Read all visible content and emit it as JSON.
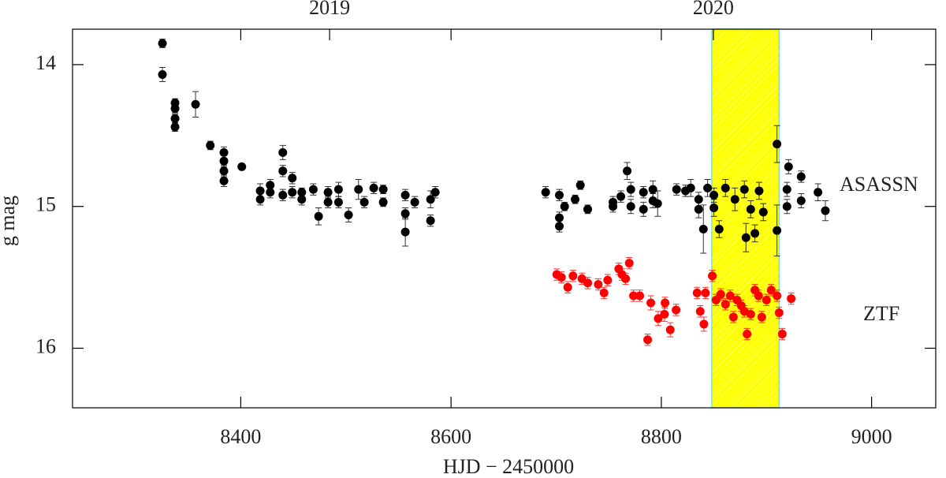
{
  "chart_data": {
    "type": "scatter",
    "x_label": "HJD − 2450000",
    "y_label": "g mag",
    "xlim": [
      8240,
      9061
    ],
    "ylim": [
      13.75,
      16.42
    ],
    "y_inverted": true,
    "xticks": [
      8400,
      8600,
      8800,
      9000
    ],
    "yticks": [
      14,
      15,
      16
    ],
    "top_ticks": [
      {
        "value": 8484.5,
        "label": "2019"
      },
      {
        "value": 8849.5,
        "label": "2020"
      }
    ],
    "shaded_region": [
      8848,
      8912
    ],
    "shaded_color": "#ffff00",
    "series": [
      {
        "name": "ASASSN",
        "color": "#000000",
        "x": [
          8325.5,
          8325.5,
          8337.5,
          8337.5,
          8337.5,
          8337.5,
          8357,
          8371,
          8384,
          8384,
          8384,
          8384,
          8401,
          8418.5,
          8418.5,
          8428,
          8428,
          8440,
          8440,
          8440,
          8449,
          8449,
          8458,
          8458,
          8469,
          8474,
          8483,
          8483,
          8493,
          8493,
          8502.5,
          8512,
          8517.5,
          8526.5,
          8535.5,
          8535.5,
          8556.5,
          8556.5,
          8556.5,
          8565.5,
          8580.5,
          8580.5,
          8585,
          8690,
          8703,
          8703,
          8703,
          8708,
          8718,
          8723,
          8730,
          8754,
          8754,
          8761.5,
          8767.5,
          8771,
          8771,
          8783,
          8783,
          8792,
          8792,
          8796.5,
          8814.5,
          8823,
          8828,
          8835.5,
          8835.5,
          8840,
          8844,
          8850,
          8850,
          8855,
          8861,
          8870,
          8879,
          8880.5,
          8885,
          8889,
          8893,
          8897,
          8910,
          8910,
          8919.5,
          8919.5,
          8921,
          8933,
          8933,
          8949,
          8956
        ],
        "values": [
          13.85,
          14.07,
          14.27,
          14.31,
          14.38,
          14.44,
          14.28,
          14.57,
          14.62,
          14.68,
          14.75,
          14.82,
          14.72,
          14.89,
          14.95,
          14.85,
          14.9,
          14.62,
          14.75,
          14.92,
          14.8,
          14.9,
          14.9,
          14.95,
          14.88,
          15.07,
          14.9,
          14.97,
          14.88,
          14.97,
          15.06,
          14.88,
          14.97,
          14.87,
          14.88,
          14.97,
          14.92,
          15.05,
          15.18,
          14.97,
          14.95,
          15.1,
          14.9,
          14.9,
          14.92,
          15.08,
          15.14,
          15.0,
          14.95,
          14.85,
          15.02,
          14.97,
          15.0,
          14.93,
          14.75,
          14.88,
          15.0,
          14.9,
          15.02,
          14.88,
          14.96,
          14.98,
          14.88,
          14.89,
          14.87,
          14.95,
          15.02,
          15.16,
          14.87,
          14.92,
          15.01,
          15.16,
          14.87,
          14.95,
          14.88,
          15.22,
          15.02,
          15.19,
          14.89,
          15.04,
          14.56,
          15.17,
          14.88,
          15.0,
          14.72,
          14.79,
          14.96,
          14.9,
          15.03
        ],
        "errors": [
          0.03,
          0.05,
          0.03,
          0.03,
          0.03,
          0.03,
          0.09,
          0.03,
          0.04,
          0.04,
          0.04,
          0.04,
          0.02,
          0.05,
          0.04,
          0.04,
          0.04,
          0.05,
          0.04,
          0.04,
          0.04,
          0.04,
          0.03,
          0.04,
          0.04,
          0.06,
          0.04,
          0.04,
          0.05,
          0.04,
          0.05,
          0.07,
          0.04,
          0.04,
          0.03,
          0.03,
          0.04,
          0.04,
          0.1,
          0.04,
          0.06,
          0.04,
          0.04,
          0.04,
          0.04,
          0.04,
          0.04,
          0.03,
          0.03,
          0.03,
          0.03,
          0.04,
          0.04,
          0.04,
          0.06,
          0.05,
          0.05,
          0.04,
          0.05,
          0.06,
          0.05,
          0.09,
          0.04,
          0.04,
          0.06,
          0.05,
          0.06,
          0.17,
          0.06,
          0.05,
          0.06,
          0.06,
          0.06,
          0.08,
          0.06,
          0.1,
          0.06,
          0.06,
          0.06,
          0.06,
          0.13,
          0.18,
          0.05,
          0.05,
          0.05,
          0.04,
          0.05,
          0.06,
          0.07
        ]
      },
      {
        "name": "ZTF",
        "color": "#ff0000",
        "x": [
          8700.5,
          8705,
          8711,
          8716,
          8724.5,
          8730,
          8740,
          8745.5,
          8749,
          8759.5,
          8762.5,
          8766,
          8769.5,
          8773.5,
          8779.5,
          8790,
          8787,
          8797,
          8803,
          8803.5,
          8808.5,
          8814,
          8834,
          8837,
          8840.5,
          8842,
          8848.5,
          8852,
          8856.5,
          8861,
          8865.5,
          8868.5,
          8872,
          8876,
          8879,
          8881.5,
          8885,
          8889,
          8892.5,
          8895.5,
          8900,
          8904.5,
          8910,
          8915,
          8923.5,
          8912
        ],
        "values": [
          15.48,
          15.5,
          15.57,
          15.49,
          15.51,
          15.54,
          15.55,
          15.61,
          15.52,
          15.44,
          15.48,
          15.51,
          15.4,
          15.63,
          15.63,
          15.68,
          15.94,
          15.79,
          15.76,
          15.68,
          15.87,
          15.73,
          15.61,
          15.74,
          15.83,
          15.61,
          15.49,
          15.66,
          15.62,
          15.69,
          15.63,
          15.78,
          15.66,
          15.7,
          15.74,
          15.9,
          15.76,
          15.59,
          15.63,
          15.78,
          15.66,
          15.59,
          15.63,
          15.9,
          15.65,
          15.75
        ],
        "errors": [
          0.04,
          0.04,
          0.04,
          0.04,
          0.04,
          0.04,
          0.04,
          0.04,
          0.04,
          0.04,
          0.04,
          0.04,
          0.04,
          0.04,
          0.04,
          0.05,
          0.04,
          0.05,
          0.05,
          0.04,
          0.05,
          0.04,
          0.04,
          0.04,
          0.05,
          0.04,
          0.04,
          0.04,
          0.04,
          0.04,
          0.04,
          0.04,
          0.04,
          0.04,
          0.04,
          0.04,
          0.04,
          0.04,
          0.04,
          0.04,
          0.04,
          0.04,
          0.04,
          0.04,
          0.04,
          0.04
        ]
      }
    ]
  }
}
